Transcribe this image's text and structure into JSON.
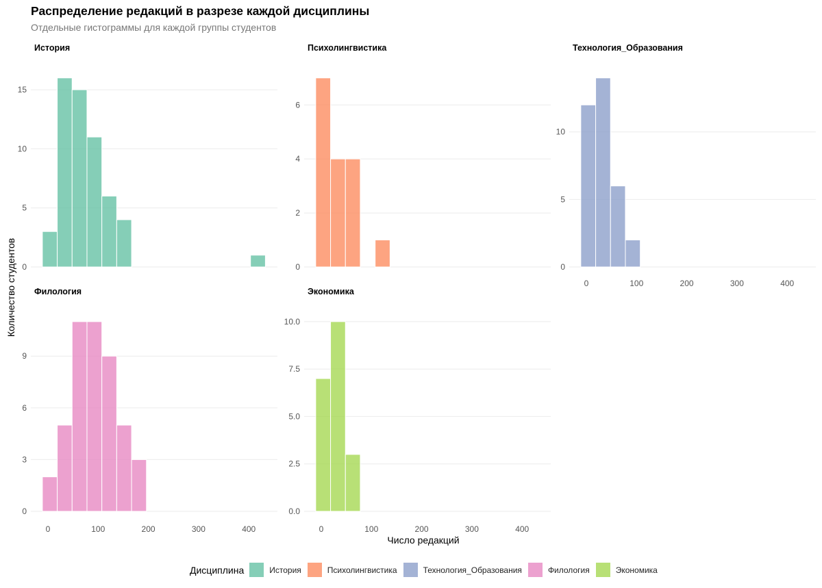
{
  "chart_data": {
    "type": "bar",
    "subtype": "faceted-histogram",
    "title": "Распределение редакций в разрезе каждой дисциплины",
    "subtitle": "Отдельные гистограммы для каждой группы студентов",
    "xlabel": "Число редакций",
    "ylabel": "Количество студентов",
    "xlim": [
      -34,
      457
    ],
    "x_ticks": [
      0,
      100,
      200,
      300,
      400
    ],
    "bin_width": 29.6,
    "bin_start": -11,
    "grid": true,
    "legend": {
      "title": "Дисциплина",
      "position": "bottom",
      "entries": [
        {
          "label": "История",
          "color": "#66c2a5"
        },
        {
          "label": "Психолингвистика",
          "color": "#fc8d62"
        },
        {
          "label": "Технология_Образования",
          "color": "#8da0cb"
        },
        {
          "label": "Филология",
          "color": "#e78ac3"
        },
        {
          "label": "Экономика",
          "color": "#a6d854"
        }
      ]
    },
    "facets": [
      {
        "name": "История",
        "color": "#66c2a5",
        "counts": [
          3,
          16,
          15,
          11,
          6,
          4,
          0,
          0,
          0,
          0,
          0,
          0,
          0,
          0,
          1
        ],
        "ylim": [
          0,
          16.8
        ],
        "y_ticks": [
          0,
          5,
          10,
          15
        ],
        "y_tick_labels": [
          "0",
          "5",
          "10",
          "15"
        ],
        "show_x_ticks": false
      },
      {
        "name": "Психолингвистика",
        "color": "#fc8d62",
        "counts": [
          7,
          4,
          4,
          0,
          1
        ],
        "ylim": [
          0,
          7.35
        ],
        "y_ticks": [
          0,
          2,
          4,
          6
        ],
        "y_tick_labels": [
          "0",
          "2",
          "4",
          "6"
        ],
        "show_x_ticks": false
      },
      {
        "name": "Технология_Образования",
        "color": "#8da0cb",
        "counts": [
          12,
          14,
          6,
          2
        ],
        "ylim": [
          0,
          14.7
        ],
        "y_ticks": [
          0,
          5,
          10
        ],
        "y_tick_labels": [
          "0",
          "5",
          "10"
        ],
        "show_x_ticks": true
      },
      {
        "name": "Филология",
        "color": "#e78ac3",
        "counts": [
          2,
          5,
          11,
          11,
          9,
          5,
          3
        ],
        "ylim": [
          0,
          11.55
        ],
        "y_ticks": [
          0,
          3,
          6,
          9
        ],
        "y_tick_labels": [
          "0",
          "3",
          "6",
          "9"
        ],
        "show_x_ticks": true
      },
      {
        "name": "Экономика",
        "color": "#a6d854",
        "counts": [
          7,
          10,
          3
        ],
        "ylim": [
          0,
          10.5
        ],
        "y_ticks": [
          0,
          2.5,
          5,
          7.5,
          10
        ],
        "y_tick_labels": [
          "0.0",
          "2.5",
          "5.0",
          "7.5",
          "10.0"
        ],
        "show_x_ticks": true
      }
    ]
  }
}
